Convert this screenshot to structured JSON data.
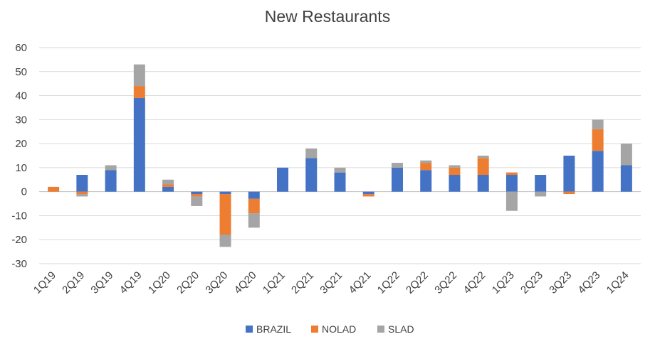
{
  "chart_data": {
    "type": "bar",
    "stacked": true,
    "title": "New Restaurants",
    "xlabel": "",
    "ylabel": "",
    "ylim": [
      -30,
      60
    ],
    "yticks": [
      60,
      50,
      40,
      30,
      20,
      10,
      0,
      -10,
      -20,
      -30
    ],
    "grid": true,
    "legend_position": "bottom",
    "categories": [
      "1Q19",
      "2Q19",
      "3Q19",
      "4Q19",
      "1Q20",
      "2Q20",
      "3Q20",
      "4Q20",
      "1Q21",
      "2Q21",
      "3Q21",
      "4Q21",
      "1Q22",
      "2Q22",
      "3Q22",
      "4Q22",
      "1Q23",
      "2Q23",
      "3Q23",
      "4Q23",
      "1Q24"
    ],
    "series": [
      {
        "name": "BRAZIL",
        "color": "#4472c4",
        "values": [
          0,
          7,
          9,
          39,
          2,
          -1,
          -1,
          -3,
          10,
          14,
          8,
          -1,
          10,
          9,
          7,
          7,
          7,
          7,
          15,
          17,
          11
        ]
      },
      {
        "name": "NOLAD",
        "color": "#ed7d31",
        "values": [
          2,
          -1,
          0,
          5,
          1,
          -1,
          -17,
          -6,
          0,
          0,
          0,
          -1,
          0,
          3,
          3,
          7,
          1,
          0,
          -1,
          9,
          0
        ]
      },
      {
        "name": "SLAD",
        "color": "#a5a5a5",
        "values": [
          0,
          -1,
          2,
          9,
          2,
          -4,
          -5,
          -6,
          0,
          4,
          2,
          0,
          2,
          1,
          1,
          1,
          -8,
          -2,
          0,
          4,
          9
        ]
      }
    ]
  }
}
